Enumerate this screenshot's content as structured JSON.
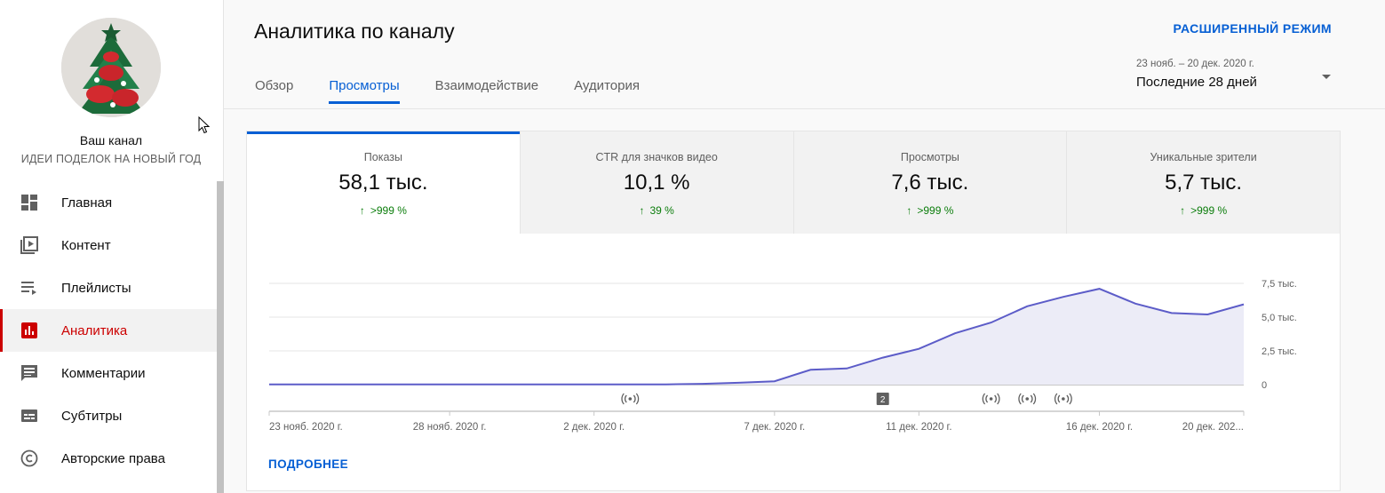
{
  "sidebar": {
    "channel_name": "Ваш канал",
    "channel_subtitle": "ИДЕИ ПОДЕЛОК НА НОВЫЙ ГОД",
    "items": [
      {
        "label": "Главная",
        "icon": "dashboard-icon"
      },
      {
        "label": "Контент",
        "icon": "video-library-icon"
      },
      {
        "label": "Плейлисты",
        "icon": "playlist-icon"
      },
      {
        "label": "Аналитика",
        "icon": "analytics-icon",
        "active": true
      },
      {
        "label": "Комментарии",
        "icon": "comment-icon"
      },
      {
        "label": "Субтитры",
        "icon": "subtitles-icon"
      },
      {
        "label": "Авторские права",
        "icon": "copyright-icon"
      }
    ]
  },
  "header": {
    "title": "Аналитика по каналу",
    "advanced_mode": "РАСШИРЕННЫЙ РЕЖИМ",
    "tabs": [
      {
        "label": "Обзор"
      },
      {
        "label": "Просмотры",
        "active": true
      },
      {
        "label": "Взаимодействие"
      },
      {
        "label": "Аудитория"
      }
    ],
    "date_range": {
      "dates": "23 нояб. – 20 дек. 2020 г.",
      "period": "Последние 28 дней"
    }
  },
  "metrics": [
    {
      "label": "Показы",
      "value": "58,1 тыс.",
      "change": ">999 %"
    },
    {
      "label": "CTR для значков видео",
      "value": "10,1 %",
      "change": "39 %"
    },
    {
      "label": "Просмотры",
      "value": "7,6 тыс.",
      "change": ">999 %"
    },
    {
      "label": "Уникальные зрители",
      "value": "5,7 тыс.",
      "change": ">999 %"
    }
  ],
  "chart_data": {
    "type": "area",
    "x_ticks": [
      "23 нояб. 2020 г.",
      "28 нояб. 2020 г.",
      "2 дек. 2020 г.",
      "7 дек. 2020 г.",
      "11 дек. 2020 г.",
      "16 дек. 2020 г.",
      "20 дек. 202..."
    ],
    "y_ticks": [
      "0",
      "2,5 тыс.",
      "5,0 тыс.",
      "7,5 тыс."
    ],
    "ylim": [
      0,
      7500
    ],
    "x": [
      "23 нояб.",
      "24 нояб.",
      "25 нояб.",
      "26 нояб.",
      "27 нояб.",
      "28 нояб.",
      "29 нояб.",
      "30 нояб.",
      "1 дек.",
      "2 дек.",
      "3 дек.",
      "4 дек.",
      "5 дек.",
      "6 дек.",
      "7 дек.",
      "8 дек.",
      "9 дек.",
      "10 дек.",
      "11 дек.",
      "12 дек.",
      "13 дек.",
      "14 дек.",
      "15 дек.",
      "16 дек.",
      "17 дек.",
      "18 дек.",
      "19 дек.",
      "20 дек."
    ],
    "values": [
      10,
      10,
      10,
      10,
      10,
      10,
      10,
      10,
      10,
      10,
      10,
      20,
      60,
      140,
      250,
      1100,
      1200,
      2000,
      2650,
      3800,
      4600,
      5800,
      6500,
      7100,
      6000,
      5300,
      5200,
      5950
    ],
    "markers": [
      {
        "date": "3 дек.",
        "type": "live"
      },
      {
        "date": "10 дек.",
        "type": "count",
        "label": "2"
      },
      {
        "date": "13 дек.",
        "type": "live"
      },
      {
        "date": "14 дек.",
        "type": "live"
      },
      {
        "date": "15 дек.",
        "type": "live"
      }
    ],
    "line_color": "#5c5cc8",
    "fill_color": "#ececf7"
  },
  "footer": {
    "more_label": "ПОДРОБНЕЕ"
  }
}
